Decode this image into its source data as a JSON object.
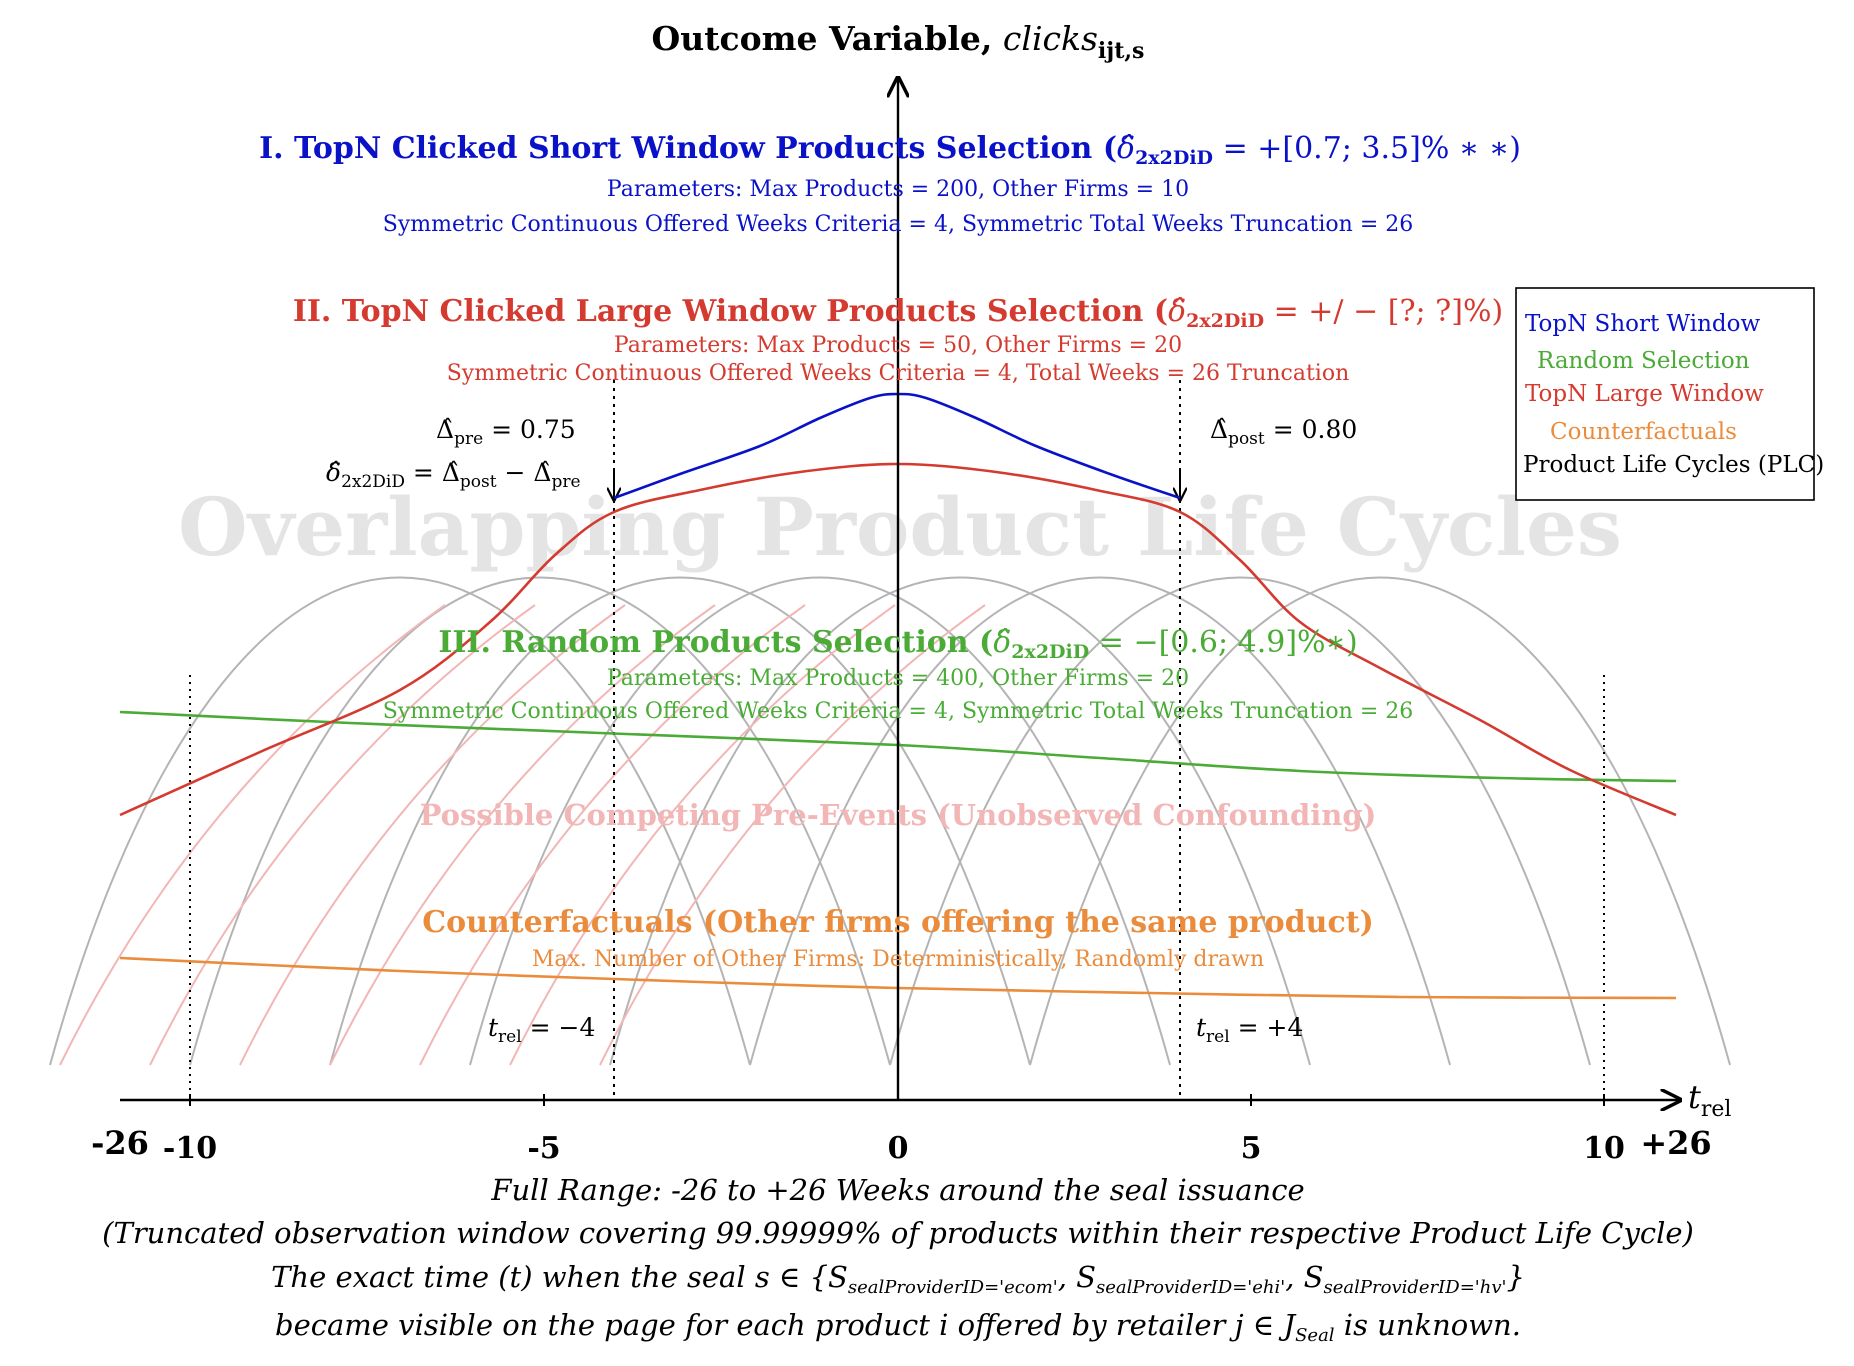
{
  "colors": {
    "blue": "#0a12c8",
    "red": "#d43a2f",
    "green": "#4aab36",
    "orange": "#ea8c3c",
    "pink": "#f2b6b6",
    "grey": "#b4b4b4",
    "watermark": "#e4e4e4",
    "black": "#000000"
  },
  "header": {
    "y_axis_title": "Outcome Variable,",
    "y_axis_var": "clicks",
    "y_axis_sub": "ijt,s"
  },
  "watermark": "Overlapping Product Life Cycles",
  "section_blue": {
    "title": "I. TopN Clicked Short Window Products Selection (",
    "delta": "δ̂",
    "delta_sub": "2x2DiD",
    "estimate": " = +[0.7; 3.5]% ∗ ∗)",
    "line1": "Parameters: Max Products = 200, Other Firms = 10",
    "line2": "Symmetric Continuous Offered Weeks Criteria = 4, Symmetric Total Weeks Truncation = 26"
  },
  "section_red": {
    "title": "II. TopN Clicked Large Window Products Selection (",
    "delta": "δ̂",
    "delta_sub": "2x2DiD",
    "estimate": " = +/ − [?; ?]%)",
    "line1": "Parameters: Max Products = 50, Other Firms = 20",
    "line2": "Symmetric Continuous Offered Weeks Criteria = 4, Total Weeks = 26 Truncation"
  },
  "section_green": {
    "title": "III. Random Products Selection (",
    "delta": "δ̂",
    "delta_sub": "2x2DiD",
    "estimate": " = −[0.6; 4.9]%∗)",
    "line1": "Parameters: Max Products = 400, Other Firms = 20",
    "line2": "Symmetric Continuous Offered Weeks Criteria = 4, Symmetric Total Weeks Truncation = 26"
  },
  "pink_label": "Possible Competing Pre-Events (Unobserved Confounding)",
  "section_orange": {
    "title": "Counterfactuals (Other firms offering the same product)",
    "line1": "Max. Number of Other Firms: Deterministically, Randomly drawn"
  },
  "annotations": {
    "delta_pre_sym": "Δ̂",
    "delta_pre_sub": "pre",
    "delta_pre_val": " = 0.75",
    "delta_post_sym": "Δ̂",
    "delta_post_sub": "post",
    "delta_post_val": " = 0.80",
    "did_lhs": "δ̂",
    "did_lhs_sub": "2x2DiD",
    "did_eq": " = Δ̂",
    "did_post_sub": "post",
    "did_minus": " − Δ̂",
    "did_pre_sub": "pre",
    "trel_left_t": "t",
    "trel_left_sub": "rel",
    "trel_left_val": " = −4",
    "trel_right_t": "t",
    "trel_right_sub": "rel",
    "trel_right_val": " = +4"
  },
  "x_axis": {
    "label_t": "t",
    "label_sub": "rel",
    "ticks": [
      "-10",
      "-5",
      "0",
      "5",
      "10"
    ],
    "range_left": "-26",
    "range_right": "+26"
  },
  "legend": {
    "items": [
      {
        "label": "TopN Short Window",
        "color": "#0a12c8"
      },
      {
        "label": "Random Selection",
        "color": "#4aab36"
      },
      {
        "label": "TopN Large Window",
        "color": "#d43a2f"
      },
      {
        "label": "Counterfactuals",
        "color": "#ea8c3c"
      },
      {
        "label": "Product Life Cycles (PLC)",
        "color": "#000000"
      }
    ]
  },
  "footer": {
    "line1": "Full Range: -26 to +26 Weeks around the seal issuance",
    "line2": "(Truncated observation window covering 99.99999% of products within their respective Product Life Cycle)",
    "line3_a": "The exact time (t) when the seal s ∈ {S",
    "line3_s1": "sealProviderID='ecom'",
    "line3_b": ", S",
    "line3_s2": "sealProviderID='ehi'",
    "line3_c": ", S",
    "line3_s3": "sealProviderID='hv'",
    "line3_d": "}",
    "line4_a": "became visible on the page for each product i offered by retailer j ∈ J",
    "line4_sub": "Seal",
    "line4_b": " is unknown."
  },
  "chart_data": {
    "type": "line",
    "xlabel": "t_rel",
    "ylabel": "Outcome Variable, clicks_ijt,s",
    "x_ticks": [
      -10,
      -5,
      0,
      5,
      10
    ],
    "x_range_printed": [
      "-26",
      "+26"
    ],
    "event_window": [
      -4,
      4
    ],
    "delta_pre": 0.75,
    "delta_post": 0.8
  }
}
